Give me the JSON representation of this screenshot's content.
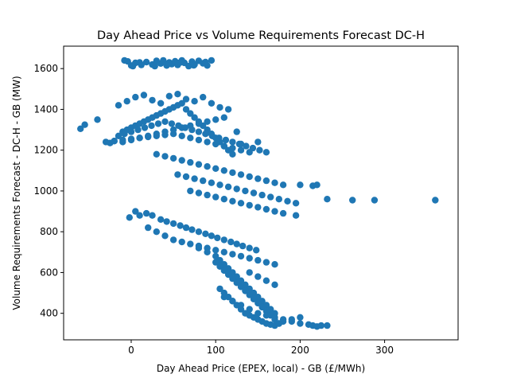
{
  "chart_data": {
    "type": "scatter",
    "title": "Day Ahead Price vs Volume Requirements Forecast DC-H",
    "xlabel": "Day Ahead Price (EPEX, local) - GB (£/MWh)",
    "ylabel": "Volume Requirements Forecast - DC-H - GB (MW)",
    "xlim": [
      -80,
      387
    ],
    "ylim": [
      270,
      1710
    ],
    "xticks": [
      0,
      100,
      200,
      300
    ],
    "yticks": [
      400,
      600,
      800,
      1000,
      1200,
      1400,
      1600
    ],
    "grid": false,
    "point_color": "#1f77b4",
    "series": [
      {
        "x": [
          -8,
          -4,
          0,
          5,
          10,
          18,
          25,
          30,
          35,
          38,
          42,
          45,
          48,
          52,
          55,
          60,
          63,
          68,
          72,
          75,
          80,
          85,
          90,
          95,
          2,
          12,
          28,
          44,
          58,
          74,
          88,
          -60,
          -55,
          -40,
          -25,
          -20,
          -15,
          -10,
          -5,
          0,
          5,
          10,
          15,
          20,
          25,
          30,
          35,
          40,
          45,
          50,
          55,
          60,
          65,
          70,
          75,
          80,
          85,
          90,
          95,
          100,
          105,
          110,
          115,
          120,
          -15,
          -5,
          5,
          15,
          25,
          35,
          45,
          55,
          65,
          75,
          85,
          95,
          105,
          115,
          -10,
          0,
          10,
          20,
          30,
          40,
          50,
          60,
          70,
          80,
          90,
          100,
          110,
          -30,
          -20,
          -10,
          0,
          10,
          20,
          30,
          40,
          50,
          60,
          70,
          80,
          90,
          100,
          110,
          120,
          130,
          140,
          150,
          130,
          125,
          -8,
          0,
          8,
          16,
          24,
          32,
          40,
          48,
          56,
          64,
          72,
          80,
          88,
          96,
          104,
          112,
          120,
          128,
          136,
          144,
          152,
          160,
          30,
          40,
          50,
          60,
          70,
          80,
          90,
          100,
          110,
          120,
          130,
          140,
          150,
          160,
          170,
          180,
          55,
          65,
          75,
          85,
          95,
          105,
          115,
          125,
          135,
          145,
          155,
          165,
          175,
          185,
          195,
          200,
          215,
          220,
          232,
          262,
          288,
          360,
          70,
          80,
          90,
          100,
          110,
          120,
          130,
          140,
          150,
          160,
          170,
          180,
          195,
          -2,
          5,
          10,
          18,
          25,
          35,
          42,
          50,
          58,
          65,
          72,
          80,
          88,
          95,
          102,
          110,
          118,
          125,
          132,
          140,
          148,
          20,
          30,
          40,
          50,
          60,
          70,
          80,
          90,
          100,
          110,
          120,
          130,
          140,
          150,
          160,
          170,
          80,
          90,
          100,
          105,
          110,
          115,
          120,
          125,
          130,
          135,
          140,
          145,
          150,
          155,
          160,
          165,
          170,
          100,
          105,
          110,
          115,
          120,
          125,
          130,
          135,
          140,
          145,
          150,
          155,
          160,
          165,
          170,
          175,
          105,
          110,
          115,
          120,
          125,
          130,
          135,
          140,
          145,
          150,
          155,
          160,
          165,
          170,
          175,
          180,
          190,
          200,
          110,
          120,
          130,
          140,
          150,
          160,
          170,
          180,
          190,
          200,
          210,
          215,
          220,
          225,
          232,
          140,
          150,
          160,
          170
        ],
        "y": [
          1640,
          1635,
          1615,
          1628,
          1630,
          1632,
          1620,
          1638,
          1625,
          1640,
          1615,
          1630,
          1622,
          1636,
          1618,
          1640,
          1628,
          1612,
          1634,
          1620,
          1638,
          1626,
          1615,
          1640,
          1612,
          1618,
          1612,
          1624,
          1630,
          1616,
          1632,
          1305,
          1325,
          1350,
          1235,
          1245,
          1270,
          1290,
          1300,
          1310,
          1320,
          1330,
          1340,
          1350,
          1360,
          1370,
          1380,
          1390,
          1400,
          1410,
          1420,
          1430,
          1400,
          1380,
          1360,
          1340,
          1320,
          1300,
          1280,
          1260,
          1240,
          1220,
          1200,
          1180,
          1420,
          1440,
          1460,
          1470,
          1445,
          1430,
          1465,
          1475,
          1450,
          1440,
          1460,
          1430,
          1410,
          1400,
          1240,
          1250,
          1260,
          1270,
          1280,
          1290,
          1300,
          1310,
          1320,
          1330,
          1340,
          1350,
          1360,
          1240,
          1245,
          1250,
          1255,
          1260,
          1265,
          1270,
          1275,
          1280,
          1270,
          1260,
          1250,
          1240,
          1230,
          1220,
          1210,
          1200,
          1190,
          1240,
          1230,
          1290,
          1280,
          1290,
          1300,
          1310,
          1320,
          1330,
          1340,
          1330,
          1320,
          1310,
          1300,
          1290,
          1280,
          1270,
          1260,
          1250,
          1240,
          1230,
          1220,
          1210,
          1200,
          1190,
          1180,
          1170,
          1160,
          1150,
          1140,
          1130,
          1120,
          1110,
          1100,
          1090,
          1080,
          1070,
          1060,
          1050,
          1040,
          1030,
          1080,
          1070,
          1060,
          1050,
          1040,
          1030,
          1020,
          1010,
          1000,
          990,
          980,
          970,
          960,
          950,
          940,
          1030,
          1025,
          1030,
          960,
          955,
          955,
          955,
          1000,
          990,
          980,
          970,
          960,
          950,
          940,
          930,
          920,
          910,
          900,
          890,
          880,
          870,
          900,
          880,
          890,
          880,
          860,
          850,
          840,
          830,
          820,
          810,
          800,
          790,
          780,
          770,
          760,
          750,
          740,
          730,
          720,
          710,
          820,
          800,
          780,
          760,
          750,
          740,
          730,
          720,
          710,
          700,
          690,
          680,
          670,
          660,
          650,
          640,
          720,
          700,
          680,
          660,
          640,
          620,
          600,
          580,
          560,
          540,
          520,
          500,
          480,
          460,
          440,
          420,
          400,
          650,
          630,
          610,
          590,
          570,
          550,
          530,
          510,
          490,
          470,
          450,
          430,
          410,
          390,
          370,
          350,
          520,
          500,
          480,
          460,
          440,
          420,
          400,
          390,
          380,
          370,
          360,
          350,
          345,
          340,
          350,
          360,
          370,
          380,
          480,
          460,
          440,
          420,
          400,
          390,
          380,
          370,
          360,
          350,
          345,
          340,
          335,
          340,
          340,
          600,
          580,
          560,
          540
        ]
      }
    ]
  }
}
